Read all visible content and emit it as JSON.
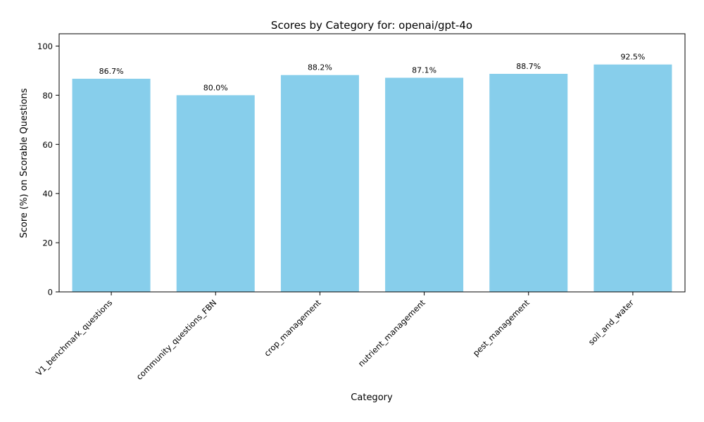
{
  "chart_data": {
    "type": "bar",
    "title": "Scores by Category for: openai/gpt-4o",
    "xlabel": "Category",
    "ylabel": "Score (%) on Scorable Questions",
    "categories": [
      "V1_benchmark_questions",
      "community_questions_FBN",
      "crop_management",
      "nutrient_management",
      "pest_management",
      "soil_and_water"
    ],
    "values": [
      86.7,
      80.0,
      88.2,
      87.1,
      88.7,
      92.5
    ],
    "value_labels": [
      "86.7%",
      "80.0%",
      "88.2%",
      "87.1%",
      "88.7%",
      "92.5%"
    ],
    "ylim": [
      0,
      105
    ],
    "yticks": [
      0,
      20,
      40,
      60,
      80,
      100
    ],
    "grid": false,
    "bar_color": "#87CEEB"
  }
}
